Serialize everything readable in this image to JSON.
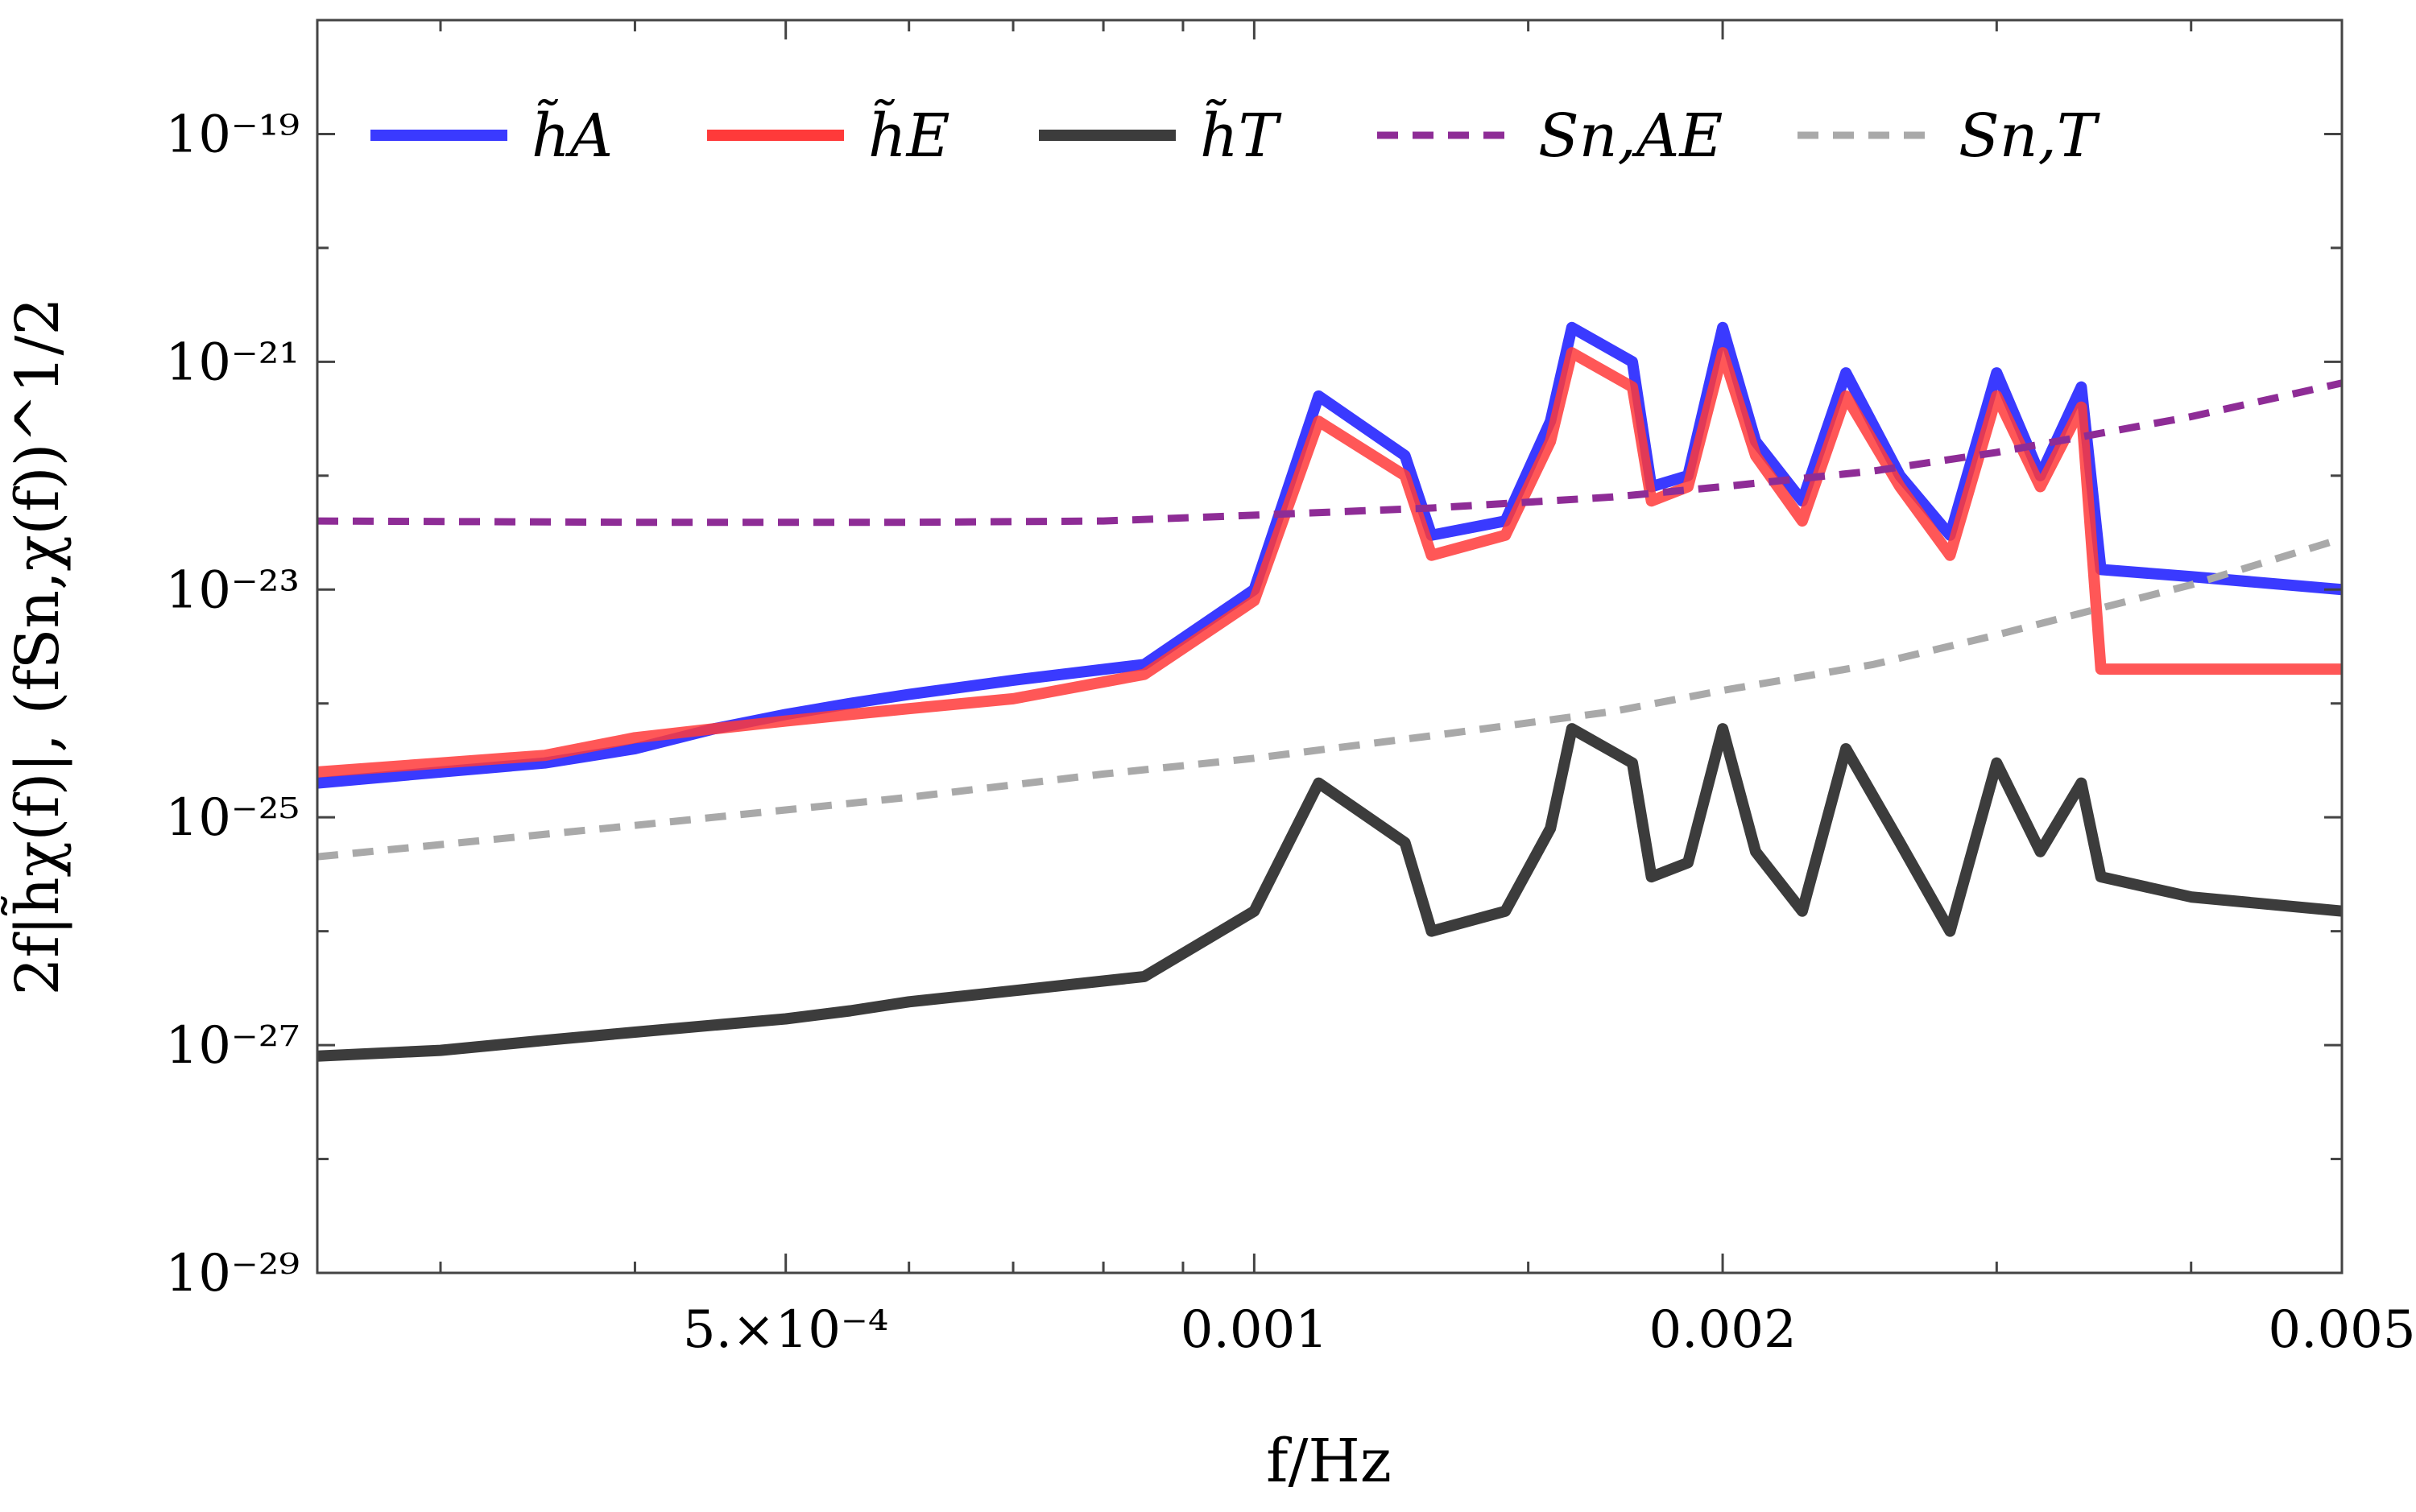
{
  "chart_data": {
    "type": "line",
    "xlabel": "f/Hz",
    "ylabel": "2f|h̃χ(f)|, (fSn,χ(f))^1/2",
    "x_scale": "log",
    "y_scale": "log",
    "xlim": [
      0.00025,
      0.005
    ],
    "ylim": [
      1e-29,
      1e-18
    ],
    "x_ticks": [
      {
        "value": 0.0005,
        "label": "5.×10⁻⁴"
      },
      {
        "value": 0.001,
        "label": "0.001"
      },
      {
        "value": 0.002,
        "label": "0.002"
      },
      {
        "value": 0.005,
        "label": "0.005"
      }
    ],
    "y_ticks": [
      {
        "value": 1e-19,
        "label": "10⁻¹⁹"
      },
      {
        "value": 1e-21,
        "label": "10⁻²¹"
      },
      {
        "value": 1e-23,
        "label": "10⁻²³"
      },
      {
        "value": 1e-25,
        "label": "10⁻²⁵"
      },
      {
        "value": 1e-27,
        "label": "10⁻²⁷"
      },
      {
        "value": 1e-29,
        "label": "10⁻²⁹"
      }
    ],
    "legend_position": "top",
    "series": [
      {
        "name": "h̃A",
        "color": "#3a3aff",
        "style": "solid",
        "x": [
          0.00025,
          0.0003,
          0.00035,
          0.0004,
          0.00045,
          0.0005,
          0.00055,
          0.0006,
          0.0007,
          0.00085,
          0.001,
          0.0011,
          0.00125,
          0.0013,
          0.00145,
          0.00155,
          0.0016,
          0.00175,
          0.0018,
          0.0019,
          0.002,
          0.0021,
          0.00225,
          0.0024,
          0.0026,
          0.0028,
          0.003,
          0.0032,
          0.0034,
          0.0035,
          0.004,
          0.005
        ],
        "y": [
          2e-25,
          2.5e-25,
          3e-25,
          4e-25,
          6e-25,
          8e-25,
          1e-24,
          1.2e-24,
          1.6e-24,
          2.2e-24,
          1e-23,
          5e-22,
          1.5e-22,
          3e-23,
          4e-23,
          3e-22,
          2e-21,
          1e-21,
          8e-23,
          1e-22,
          2e-21,
          2e-22,
          6e-23,
          8e-22,
          1e-22,
          3e-23,
          8e-22,
          1e-22,
          6e-22,
          1.5e-23,
          1.3e-23,
          1e-23
        ]
      },
      {
        "name": "h̃E",
        "color": "#ff3a3a",
        "style": "solid",
        "x": [
          0.00025,
          0.0003,
          0.00035,
          0.0004,
          0.00045,
          0.0005,
          0.00055,
          0.0006,
          0.0007,
          0.00085,
          0.001,
          0.0011,
          0.00125,
          0.0013,
          0.00145,
          0.00155,
          0.0016,
          0.00175,
          0.0018,
          0.0019,
          0.002,
          0.0021,
          0.00225,
          0.0024,
          0.0026,
          0.0028,
          0.003,
          0.0032,
          0.0034,
          0.0035,
          0.004,
          0.005
        ],
        "y": [
          2.5e-25,
          3e-25,
          3.5e-25,
          5e-25,
          6e-25,
          7e-25,
          8e-25,
          9e-25,
          1.1e-24,
          1.8e-24,
          8e-24,
          3e-22,
          1e-22,
          2e-23,
          3e-23,
          2e-22,
          1.2e-21,
          6e-22,
          6e-23,
          8e-23,
          1.2e-21,
          1.5e-22,
          4e-23,
          5e-22,
          8e-23,
          2e-23,
          5e-22,
          8e-23,
          4e-22,
          2e-24,
          2e-24,
          2e-24
        ]
      },
      {
        "name": "h̃T",
        "color": "#3c3c3c",
        "style": "solid",
        "x": [
          0.00025,
          0.0003,
          0.00035,
          0.0004,
          0.00045,
          0.0005,
          0.00055,
          0.0006,
          0.0007,
          0.00085,
          0.001,
          0.0011,
          0.00125,
          0.0013,
          0.00145,
          0.00155,
          0.0016,
          0.00175,
          0.0018,
          0.0019,
          0.002,
          0.0021,
          0.00225,
          0.0024,
          0.0026,
          0.0028,
          0.003,
          0.0032,
          0.0034,
          0.0035,
          0.004,
          0.005
        ],
        "y": [
          8e-28,
          9e-28,
          1.1e-27,
          1.3e-27,
          1.5e-27,
          1.7e-27,
          2e-27,
          2.4e-27,
          3e-27,
          4e-27,
          1.5e-26,
          2e-25,
          6e-26,
          1e-26,
          1.5e-26,
          8e-26,
          6e-25,
          3e-25,
          3e-26,
          4e-26,
          6e-25,
          5e-26,
          1.5e-26,
          4e-25,
          6e-26,
          1e-26,
          3e-25,
          5e-26,
          2e-25,
          3e-26,
          2e-26,
          1.5e-26
        ]
      },
      {
        "name": "Sn,AE",
        "color": "#8e2c96",
        "style": "dashed",
        "x": [
          0.00025,
          0.0004,
          0.0006,
          0.0008,
          0.001,
          0.0013,
          0.0017,
          0.002,
          0.0025,
          0.003,
          0.004,
          0.005
        ],
        "y": [
          4e-23,
          3.9e-23,
          3.9e-23,
          4e-23,
          4.5e-23,
          5.2e-23,
          6.5e-23,
          8e-23,
          1.1e-22,
          1.6e-22,
          3.3e-22,
          6.5e-22
        ]
      },
      {
        "name": "Sn,T",
        "color": "#a9a9a9",
        "style": "dashed",
        "x": [
          0.00025,
          0.0004,
          0.0006,
          0.0008,
          0.001,
          0.0013,
          0.0017,
          0.002,
          0.0025,
          0.003,
          0.004,
          0.005
        ],
        "y": [
          4.5e-26,
          8.5e-26,
          1.5e-25,
          2.4e-25,
          3.3e-25,
          5.2e-25,
          8.5e-25,
          1.3e-24,
          2.2e-24,
          4e-24,
          1.1e-23,
          2.8e-23
        ]
      }
    ]
  }
}
